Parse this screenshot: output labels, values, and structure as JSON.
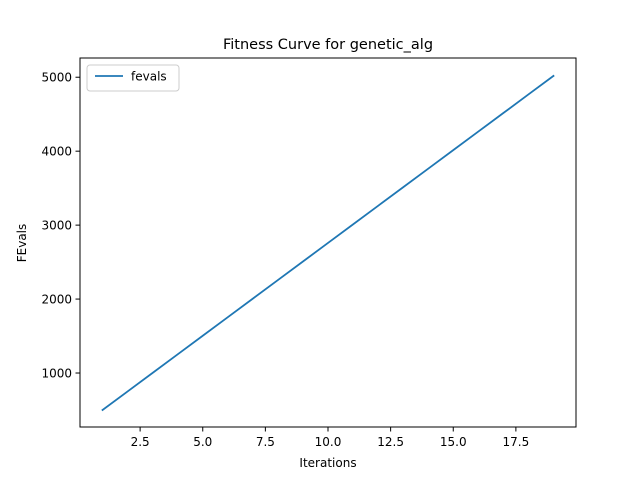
{
  "chart_data": {
    "type": "line",
    "title": "Fitness Curve for genetic_alg",
    "xlabel": "Iterations",
    "ylabel": "FEvals",
    "xlim": [
      0.1,
      19.9
    ],
    "ylim": [
      270,
      5260
    ],
    "xticks": [
      2.5,
      5.0,
      7.5,
      10.0,
      12.5,
      15.0,
      17.5
    ],
    "xtick_labels": [
      "2.5",
      "5.0",
      "7.5",
      "10.0",
      "12.5",
      "15.0",
      "17.5"
    ],
    "yticks": [
      1000,
      2000,
      3000,
      4000,
      5000
    ],
    "ytick_labels": [
      "1000",
      "2000",
      "3000",
      "4000",
      "5000"
    ],
    "grid": false,
    "legend_position": "top-left",
    "series": [
      {
        "name": "fevals",
        "color": "#1f77b4",
        "x": [
          1,
          2,
          3,
          4,
          5,
          6,
          7,
          8,
          9,
          10,
          11,
          12,
          13,
          14,
          15,
          16,
          17,
          18,
          19
        ],
        "values": [
          500,
          751,
          1002,
          1253,
          1504,
          1755,
          2006,
          2257,
          2508,
          2759,
          3010,
          3261,
          3512,
          3763,
          4014,
          4265,
          4516,
          4767,
          5018
        ]
      }
    ]
  }
}
